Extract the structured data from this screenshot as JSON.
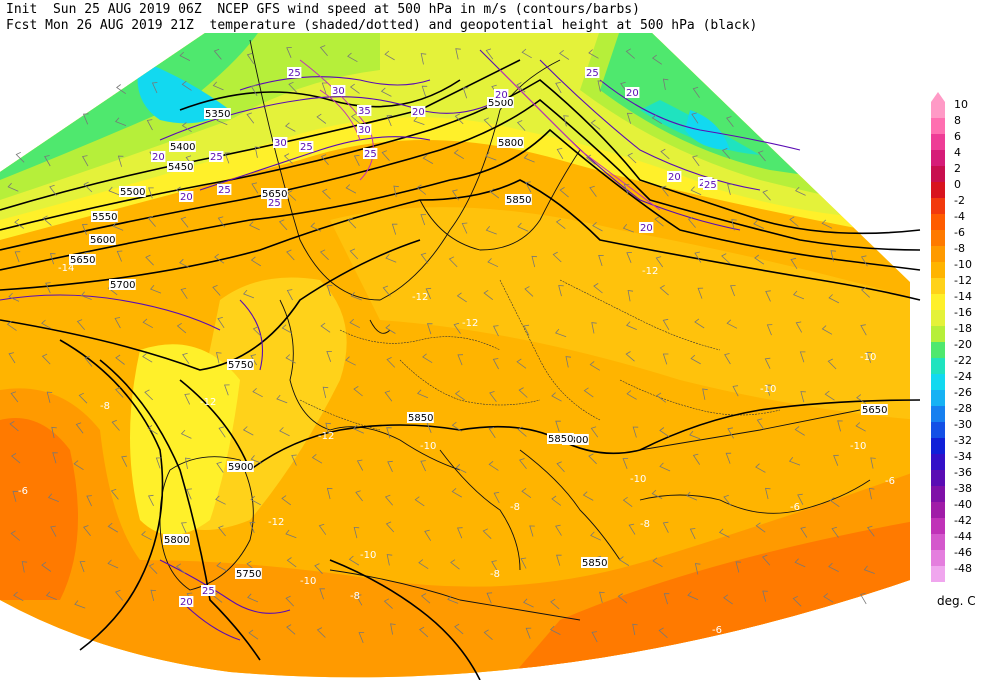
{
  "header": {
    "line1": "Init  Sun 25 AUG 2019 06Z  NCEP GFS wind speed at 500 hPa in m/s (contours/barbs)",
    "line2": "Fcst Mon 26 AUG 2019 21Z  temperature (shaded/dotted) and geopotential height at 500 hPa (black)"
  },
  "legend": {
    "unit": "deg. C",
    "levels": [
      {
        "label": "10",
        "color": "#ff9ac6"
      },
      {
        "label": "8",
        "color": "#ff6fb0"
      },
      {
        "label": "6",
        "color": "#ee3d96"
      },
      {
        "label": "4",
        "color": "#d61c78"
      },
      {
        "label": "2",
        "color": "#c80f4e"
      },
      {
        "label": "0",
        "color": "#d8141e"
      },
      {
        "label": "-2",
        "color": "#f23a0d"
      },
      {
        "label": "-4",
        "color": "#ff5c00"
      },
      {
        "label": "-6",
        "color": "#ff7a00"
      },
      {
        "label": "-8",
        "color": "#ff9a00"
      },
      {
        "label": "-10",
        "color": "#ffb400"
      },
      {
        "label": "-12",
        "color": "#ffd21a"
      },
      {
        "label": "-14",
        "color": "#fff02a"
      },
      {
        "label": "-16",
        "color": "#e4f23a"
      },
      {
        "label": "-18",
        "color": "#b6ef3a"
      },
      {
        "label": "-20",
        "color": "#4fe86e"
      },
      {
        "label": "-22",
        "color": "#1fe3bf"
      },
      {
        "label": "-24",
        "color": "#12d9f0"
      },
      {
        "label": "-26",
        "color": "#16b2f4"
      },
      {
        "label": "-28",
        "color": "#1680f0"
      },
      {
        "label": "-30",
        "color": "#1450e6"
      },
      {
        "label": "-32",
        "color": "#1020d8"
      },
      {
        "label": "-34",
        "color": "#3310c8"
      },
      {
        "label": "-36",
        "color": "#5a0cb4"
      },
      {
        "label": "-38",
        "color": "#7f10a8"
      },
      {
        "label": "-40",
        "color": "#a01ca8"
      },
      {
        "label": "-42",
        "color": "#c032b8"
      },
      {
        "label": "-44",
        "color": "#d458cc"
      },
      {
        "label": "-46",
        "color": "#e47ede"
      },
      {
        "label": "-48",
        "color": "#f0a6ee"
      }
    ]
  },
  "map": {
    "height_labels": [
      {
        "text": "5350"
      },
      {
        "text": "5400"
      },
      {
        "text": "5450"
      },
      {
        "text": "5500"
      },
      {
        "text": "5550"
      },
      {
        "text": "5600"
      },
      {
        "text": "5650"
      },
      {
        "text": "5700"
      },
      {
        "text": "5750"
      },
      {
        "text": "5800"
      },
      {
        "text": "5850"
      },
      {
        "text": "5900"
      },
      {
        "text": "5750"
      },
      {
        "text": "5500"
      },
      {
        "text": "5800"
      },
      {
        "text": "5650"
      },
      {
        "text": "5850"
      },
      {
        "text": "5850"
      },
      {
        "text": "5800"
      },
      {
        "text": "5650"
      },
      {
        "text": "5850"
      }
    ],
    "temp_labels": [
      {
        "text": "-14"
      },
      {
        "text": "-12"
      },
      {
        "text": "-12"
      },
      {
        "text": "-12"
      },
      {
        "text": "-12"
      },
      {
        "text": "-10"
      },
      {
        "text": "-10"
      },
      {
        "text": "-10"
      },
      {
        "text": "-10"
      },
      {
        "text": "-10"
      },
      {
        "text": "-8"
      },
      {
        "text": "-8"
      },
      {
        "text": "-8"
      },
      {
        "text": "-8"
      },
      {
        "text": "-6"
      },
      {
        "text": "-6"
      },
      {
        "text": "-6"
      },
      {
        "text": "-12"
      },
      {
        "text": "-12"
      },
      {
        "text": "-10"
      },
      {
        "text": "-10"
      },
      {
        "text": "-8"
      },
      {
        "text": "-6"
      }
    ],
    "wind_labels": [
      {
        "text": "25"
      },
      {
        "text": "30"
      },
      {
        "text": "35"
      },
      {
        "text": "30"
      },
      {
        "text": "25"
      },
      {
        "text": "30"
      },
      {
        "text": "25"
      },
      {
        "text": "20"
      },
      {
        "text": "25"
      },
      {
        "text": "20"
      },
      {
        "text": "25"
      },
      {
        "text": "20"
      },
      {
        "text": "25"
      },
      {
        "text": "20"
      },
      {
        "text": "20"
      },
      {
        "text": "25"
      },
      {
        "text": "20"
      },
      {
        "text": "20"
      },
      {
        "text": "25"
      },
      {
        "text": "20"
      },
      {
        "text": "20"
      },
      {
        "text": "25"
      }
    ]
  }
}
